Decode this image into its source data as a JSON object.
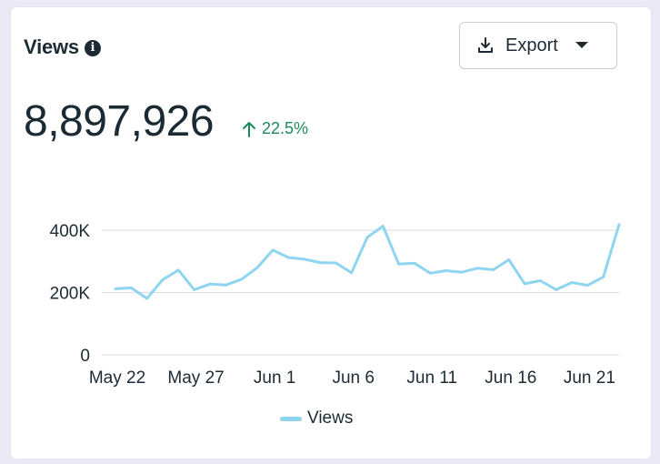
{
  "card": {
    "title": "Views",
    "export_label": "Export",
    "metric_value": "8,897,926",
    "change_value": "22.5%",
    "change_direction": "up"
  },
  "colors": {
    "line": "#8fd5f0",
    "positive": "#1e8a5a",
    "text": "#1c2b33",
    "grid": "#dadde1"
  },
  "chart_data": {
    "type": "line",
    "title": "",
    "xlabel": "",
    "ylabel": "",
    "ylim": [
      0,
      400000
    ],
    "yticks": [
      0,
      200000,
      400000
    ],
    "ytick_labels": [
      "0",
      "200K",
      "400K"
    ],
    "x_tick_labels": [
      "May 22",
      "May 27",
      "Jun 1",
      "Jun 6",
      "Jun 11",
      "Jun 16",
      "Jun 21"
    ],
    "grid": true,
    "legend_position": "bottom-center",
    "x": [
      "May 22",
      "May 23",
      "May 24",
      "May 25",
      "May 26",
      "May 27",
      "May 28",
      "May 29",
      "May 30",
      "May 31",
      "Jun 1",
      "Jun 2",
      "Jun 3",
      "Jun 4",
      "Jun 5",
      "Jun 6",
      "Jun 7",
      "Jun 8",
      "Jun 9",
      "Jun 10",
      "Jun 11",
      "Jun 12",
      "Jun 13",
      "Jun 14",
      "Jun 15",
      "Jun 16",
      "Jun 17",
      "Jun 18",
      "Jun 19",
      "Jun 20",
      "Jun 21",
      "Jun 22",
      "Jun 23"
    ],
    "series": [
      {
        "name": "Views",
        "values": [
          212000,
          215000,
          181000,
          241000,
          272000,
          209000,
          227000,
          224000,
          242000,
          279000,
          336000,
          312000,
          307000,
          296000,
          295000,
          263000,
          377000,
          413000,
          291000,
          294000,
          262000,
          270000,
          265000,
          278000,
          273000,
          305000,
          228000,
          238000,
          209000,
          232000,
          223000,
          250000,
          418000
        ]
      }
    ]
  }
}
